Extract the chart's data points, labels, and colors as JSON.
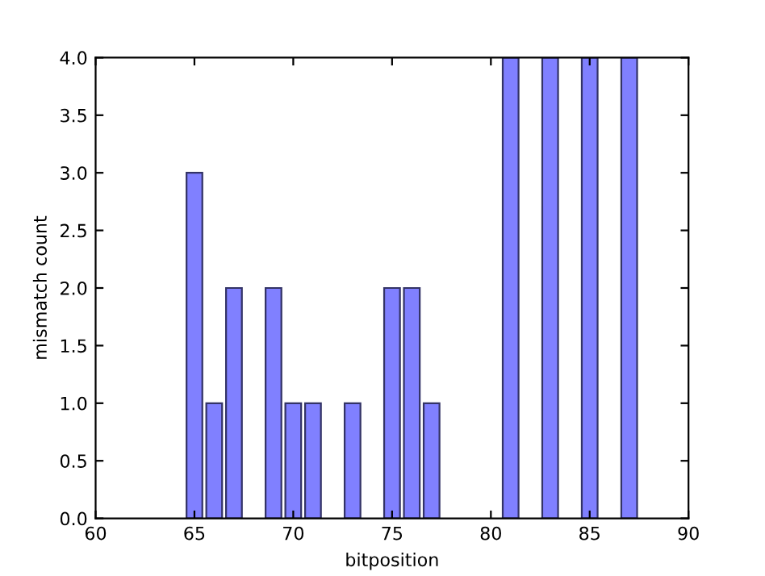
{
  "chart_data": {
    "type": "bar",
    "xlabel": "bitposition",
    "ylabel": "mismatch count",
    "x": [
      65,
      66,
      67,
      69,
      70,
      71,
      73,
      75,
      76,
      77,
      81,
      83,
      85,
      87
    ],
    "values": [
      3,
      1,
      2,
      2,
      1,
      1,
      1,
      2,
      2,
      1,
      4,
      4,
      4,
      4
    ],
    "color": "#8080ff",
    "xlim": [
      60,
      90
    ],
    "xticks": [
      60,
      65,
      70,
      75,
      80,
      85,
      90
    ],
    "ylim": [
      0,
      4
    ],
    "yticks": [
      {
        "value": 0,
        "label": "0.0"
      },
      {
        "value": 0.5,
        "label": "0.5"
      },
      {
        "value": 1,
        "label": "1.0"
      },
      {
        "value": 1.5,
        "label": "1.5"
      },
      {
        "value": 2,
        "label": "2.0"
      },
      {
        "value": 2.5,
        "label": "2.5"
      },
      {
        "value": 3,
        "label": "3.0"
      },
      {
        "value": 3.5,
        "label": "3.5"
      },
      {
        "value": 4,
        "label": "4.0"
      }
    ],
    "grid": false
  }
}
